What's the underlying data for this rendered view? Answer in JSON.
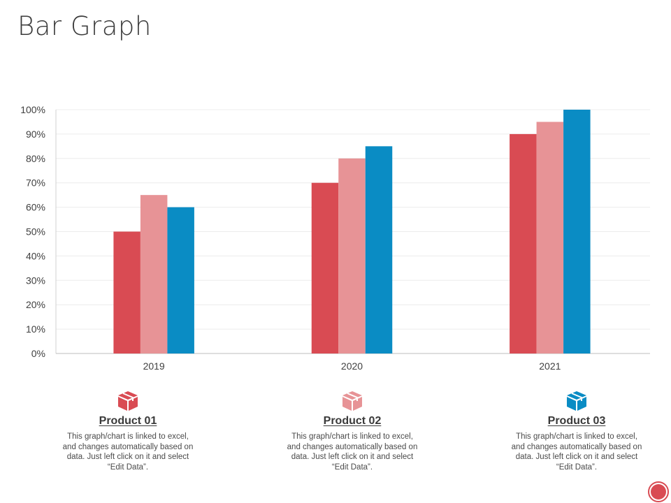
{
  "page": {
    "title": "Bar Graph"
  },
  "colors": {
    "product1": "#d94b53",
    "product2": "#e79396",
    "product3": "#0a8cc4"
  },
  "chart_data": {
    "type": "bar",
    "title": "",
    "xlabel": "",
    "ylabel": "",
    "categories": [
      "2019",
      "2020",
      "2021"
    ],
    "ylim": [
      0,
      100
    ],
    "yticks": [
      "0%",
      "10%",
      "20%",
      "30%",
      "40%",
      "50%",
      "60%",
      "70%",
      "80%",
      "90%",
      "100%"
    ],
    "series": [
      {
        "name": "Product 01",
        "values": [
          50,
          70,
          90
        ]
      },
      {
        "name": "Product 02",
        "values": [
          65,
          80,
          95
        ]
      },
      {
        "name": "Product 03",
        "values": [
          60,
          85,
          100
        ]
      }
    ]
  },
  "legend": [
    {
      "name": "Product 01",
      "icon": "box-icon",
      "description": "This graph/chart is linked to excel, and changes automatically based on data. Just left click on it and select “Edit Data”."
    },
    {
      "name": "Product 02",
      "icon": "box-icon",
      "description": "This graph/chart is linked to excel, and changes automatically based on data. Just left click on it and select “Edit Data”."
    },
    {
      "name": "Product 03",
      "icon": "box-icon",
      "description": "This graph/chart is linked to excel, and changes automatically based on data. Just left click on it and select “Edit Data”."
    }
  ]
}
